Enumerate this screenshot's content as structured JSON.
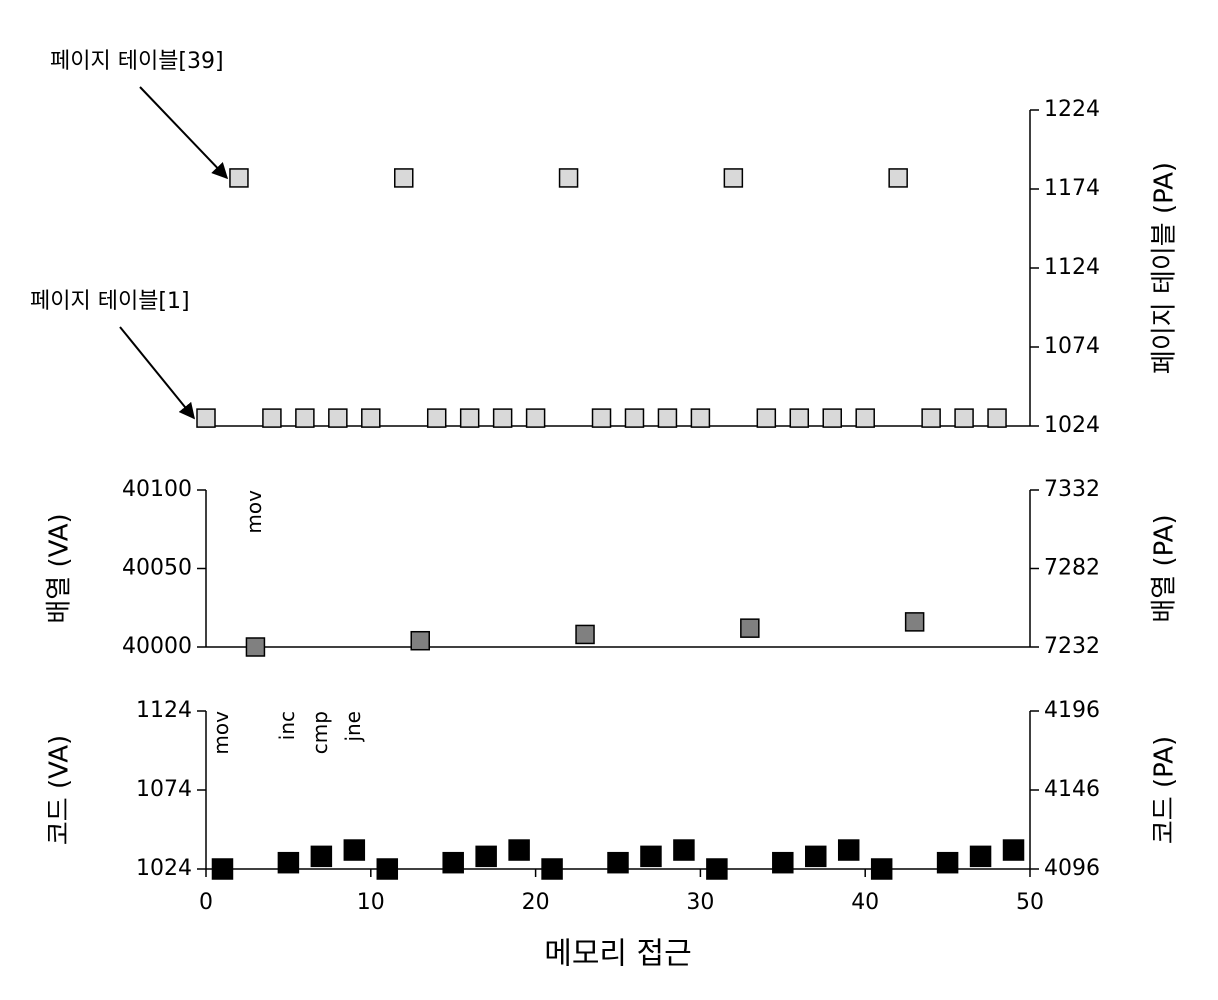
{
  "chart_data": [
    {
      "type": "scatter",
      "color": "#d9d9d9",
      "y_label_right": "페이지 테이블 (PA)",
      "xlim": [
        0,
        50
      ],
      "ylim": [
        1024,
        1224
      ],
      "yticks": [
        1024,
        1074,
        1124,
        1174,
        1224
      ],
      "x": [
        0,
        2,
        4,
        6,
        8,
        10,
        12,
        14,
        16,
        18,
        20,
        22,
        24,
        26,
        28,
        30,
        32,
        34,
        36,
        38,
        40,
        42,
        44,
        46,
        48
      ],
      "values": [
        1029,
        1181,
        1029,
        1029,
        1029,
        1029,
        1181,
        1029,
        1029,
        1029,
        1029,
        1181,
        1029,
        1029,
        1029,
        1029,
        1181,
        1029,
        1029,
        1029,
        1029,
        1181,
        1029,
        1029,
        1029
      ],
      "callouts": [
        {
          "text": "페이지 테이블[39]",
          "x": 2,
          "y": 1181
        },
        {
          "text": "페이지 테이블[1]",
          "x": 0,
          "y": 1029
        }
      ]
    },
    {
      "type": "scatter",
      "color": "#808080",
      "y_label": "배열 (VA)",
      "y_label_right": "배열 (PA)",
      "xlim": [
        0,
        50
      ],
      "ylim": [
        40000,
        40100
      ],
      "yticks": [
        40000,
        40050,
        40100
      ],
      "y2lim": [
        7232,
        7332
      ],
      "y2ticks": [
        7232,
        7282,
        7332
      ],
      "x": [
        3,
        13,
        23,
        33,
        43
      ],
      "values": [
        40000,
        40004,
        40008,
        40012,
        40016
      ],
      "annotations": [
        {
          "text": "mov",
          "x": 3
        }
      ]
    },
    {
      "type": "scatter",
      "color": "#000000",
      "y_label": "코드 (VA)",
      "y_label_right": "코드 (PA)",
      "x_label": "메모리 접근",
      "xlim": [
        0,
        50
      ],
      "xticks": [
        0,
        10,
        20,
        30,
        40,
        50
      ],
      "ylim": [
        1024,
        1124
      ],
      "yticks": [
        1024,
        1074,
        1124
      ],
      "y2lim": [
        4096,
        4196
      ],
      "y2ticks": [
        4096,
        4146,
        4196
      ],
      "x": [
        1,
        5,
        7,
        9,
        11,
        15,
        17,
        19,
        21,
        25,
        27,
        29,
        31,
        35,
        37,
        39,
        41,
        45,
        47,
        49
      ],
      "values": [
        1024,
        1028,
        1032,
        1036,
        1024,
        1028,
        1032,
        1036,
        1024,
        1028,
        1032,
        1036,
        1024,
        1028,
        1032,
        1036,
        1024,
        1028,
        1032,
        1036
      ],
      "annotations": [
        {
          "text": "mov",
          "x": 1
        },
        {
          "text": "inc",
          "x": 5
        },
        {
          "text": "cmp",
          "x": 7
        },
        {
          "text": "jne",
          "x": 9
        }
      ]
    }
  ]
}
